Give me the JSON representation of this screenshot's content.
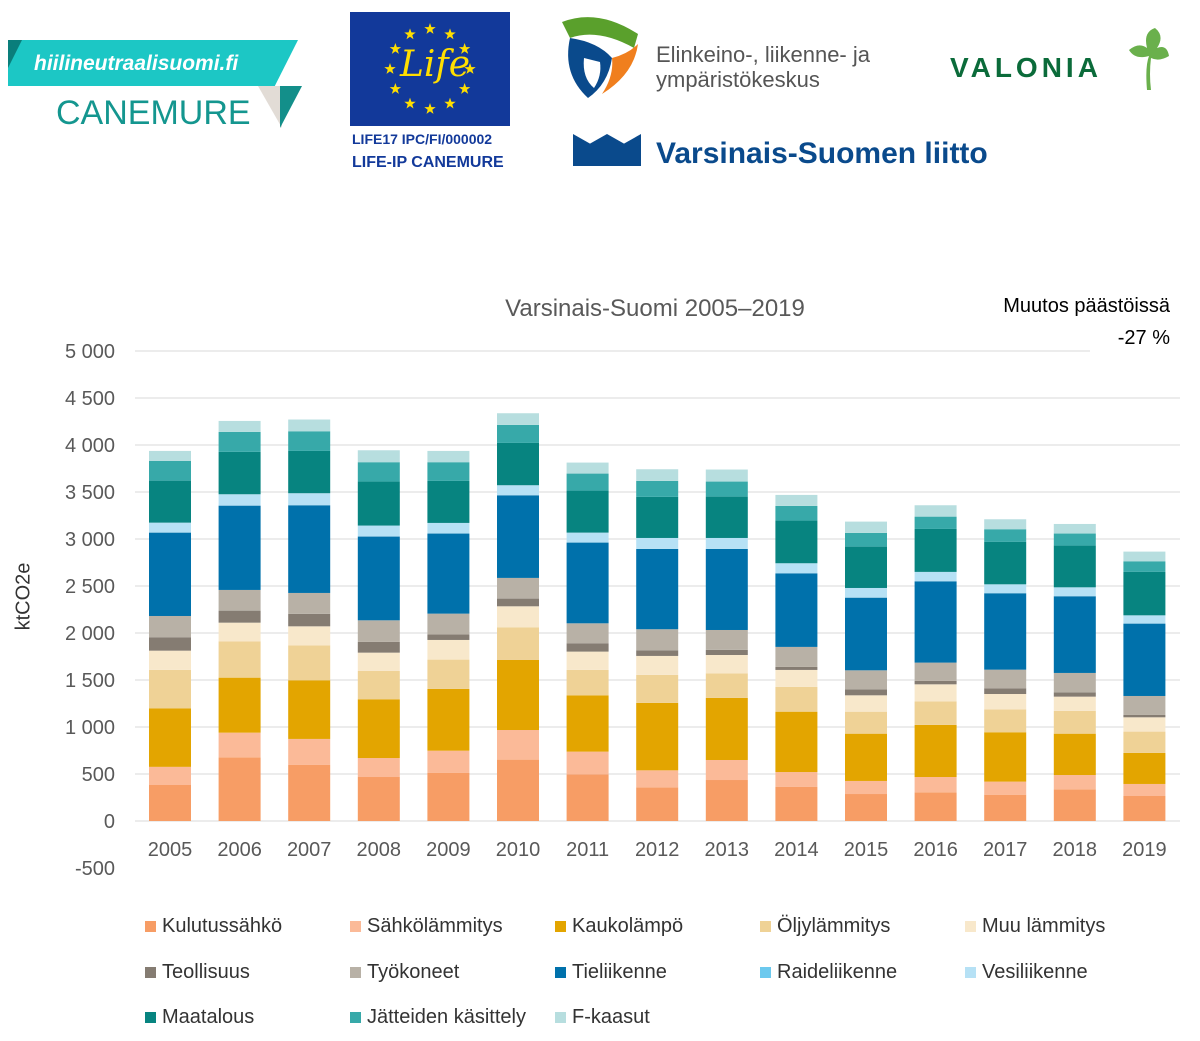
{
  "logos": {
    "hiilineutraali": {
      "url_text": "hiilineutraalisuomi.fi",
      "name": "CANEMURE"
    },
    "life": {
      "flag_text": "Life",
      "code": "LIFE17 IPC/FI/000002",
      "project": "LIFE-IP CANEMURE"
    },
    "ely": {
      "line1": "Elinkeino-, liikenne- ja",
      "line2": "ympäristökeskus"
    },
    "vsl": {
      "name": "Varsinais-Suomen liitto"
    },
    "valonia": {
      "name": "VALONIA"
    }
  },
  "annotation": {
    "line1": "Muutos päästöissä",
    "line2": "-27 %"
  },
  "chart_data": {
    "type": "bar",
    "stacked": true,
    "title": "Varsinais-Suomi 2005–2019",
    "xlabel": "",
    "ylabel": "ktCO2e",
    "ylim": [
      -500,
      5000
    ],
    "yticks": [
      -500,
      0,
      500,
      1000,
      1500,
      2000,
      2500,
      3000,
      3500,
      4000,
      4500,
      5000
    ],
    "ytick_labels": [
      "-500",
      "0",
      "500",
      "1 000",
      "1 500",
      "2 000",
      "2 500",
      "3 000",
      "3 500",
      "4 000",
      "4 500",
      "5 000"
    ],
    "grid": true,
    "legend_position": "bottom",
    "categories": [
      "2005",
      "2006",
      "2007",
      "2008",
      "2009",
      "2010",
      "2011",
      "2012",
      "2013",
      "2014",
      "2015",
      "2016",
      "2017",
      "2018",
      "2019"
    ],
    "series": [
      {
        "name": "Kulutussähkö",
        "color": "#F79D65",
        "values": [
          383,
          677,
          596,
          468,
          514,
          653,
          497,
          358,
          436,
          365,
          287,
          305,
          280,
          337,
          266
        ]
      },
      {
        "name": "Sähkölämmitys",
        "color": "#FBBA98",
        "values": [
          193,
          263,
          277,
          202,
          234,
          315,
          241,
          181,
          213,
          156,
          139,
          163,
          139,
          152,
          128
        ]
      },
      {
        "name": "Kaukolämpö",
        "color": "#E3A500",
        "values": [
          623,
          585,
          624,
          625,
          657,
          745,
          599,
          717,
          660,
          642,
          503,
          554,
          525,
          440,
          330
        ]
      },
      {
        "name": "Öljylämmitys",
        "color": "#EFD296",
        "values": [
          408,
          387,
          372,
          301,
          312,
          348,
          270,
          298,
          262,
          263,
          234,
          251,
          244,
          242,
          227
        ]
      },
      {
        "name": "Muu lämmitys",
        "color": "#F8E8CB",
        "values": [
          205,
          198,
          202,
          195,
          209,
          223,
          195,
          202,
          195,
          181,
          174,
          181,
          163,
          152,
          152
        ]
      },
      {
        "name": "Teollisuus",
        "color": "#857C72",
        "values": [
          143,
          128,
          132,
          114,
          60,
          82,
          89,
          60,
          54,
          32,
          64,
          36,
          61,
          46,
          25
        ]
      },
      {
        "name": "Työkoneet",
        "color": "#B8B1A6",
        "values": [
          226,
          220,
          223,
          230,
          220,
          220,
          212,
          224,
          212,
          213,
          202,
          195,
          198,
          206,
          202
        ]
      },
      {
        "name": "Tieliikenne",
        "color": "#0071AB",
        "values": [
          887,
          897,
          933,
          891,
          852,
          879,
          859,
          854,
          862,
          783,
          773,
          865,
          813,
          816,
          770
        ]
      },
      {
        "name": "Raideliikenne",
        "color": "#6CC9EE",
        "values": [
          0,
          0,
          0,
          0,
          0,
          0,
          0,
          0,
          0,
          0,
          0,
          0,
          0,
          0,
          0
        ]
      },
      {
        "name": "Vesiliikenne",
        "color": "#B6E1F5",
        "values": [
          106,
          121,
          128,
          117,
          113,
          107,
          106,
          117,
          117,
          107,
          103,
          100,
          95,
          95,
          88
        ]
      },
      {
        "name": "Maatalous",
        "color": "#078480",
        "values": [
          447,
          451,
          450,
          468,
          447,
          450,
          447,
          437,
          440,
          454,
          440,
          457,
          451,
          444,
          462
        ]
      },
      {
        "name": "Jätteiden käsittely",
        "color": "#37A9A9",
        "values": [
          209,
          212,
          209,
          206,
          199,
          192,
          181,
          170,
          160,
          156,
          146,
          131,
          135,
          128,
          113
        ]
      },
      {
        "name": "F-kaasut",
        "color": "#B7DEDF",
        "values": [
          107,
          117,
          125,
          127,
          120,
          124,
          117,
          124,
          128,
          117,
          120,
          121,
          106,
          102,
          103
        ]
      }
    ]
  }
}
